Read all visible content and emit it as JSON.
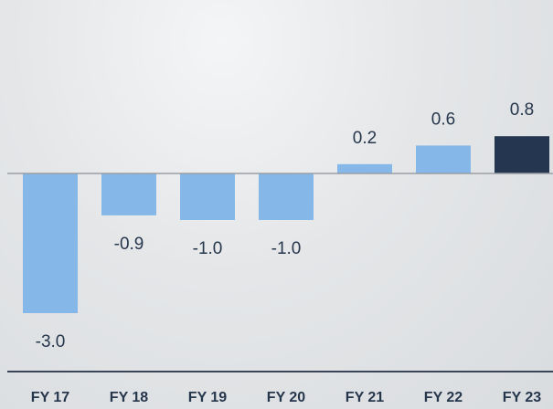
{
  "chart_data": {
    "type": "bar",
    "categories": [
      "FY 17",
      "FY 18",
      "FY 19",
      "FY 20",
      "FY 21",
      "FY 22",
      "FY 23"
    ],
    "values": [
      -3.0,
      -0.9,
      -1.0,
      -1.0,
      0.2,
      0.6,
      0.8
    ],
    "value_labels": [
      "-3.0",
      "-0.9",
      "-1.0",
      "-1.0",
      "0.2",
      "0.6",
      "0.8"
    ],
    "colors": [
      "#85b8e8",
      "#85b8e8",
      "#85b8e8",
      "#85b8e8",
      "#85b8e8",
      "#85b8e8",
      "#253750"
    ]
  }
}
